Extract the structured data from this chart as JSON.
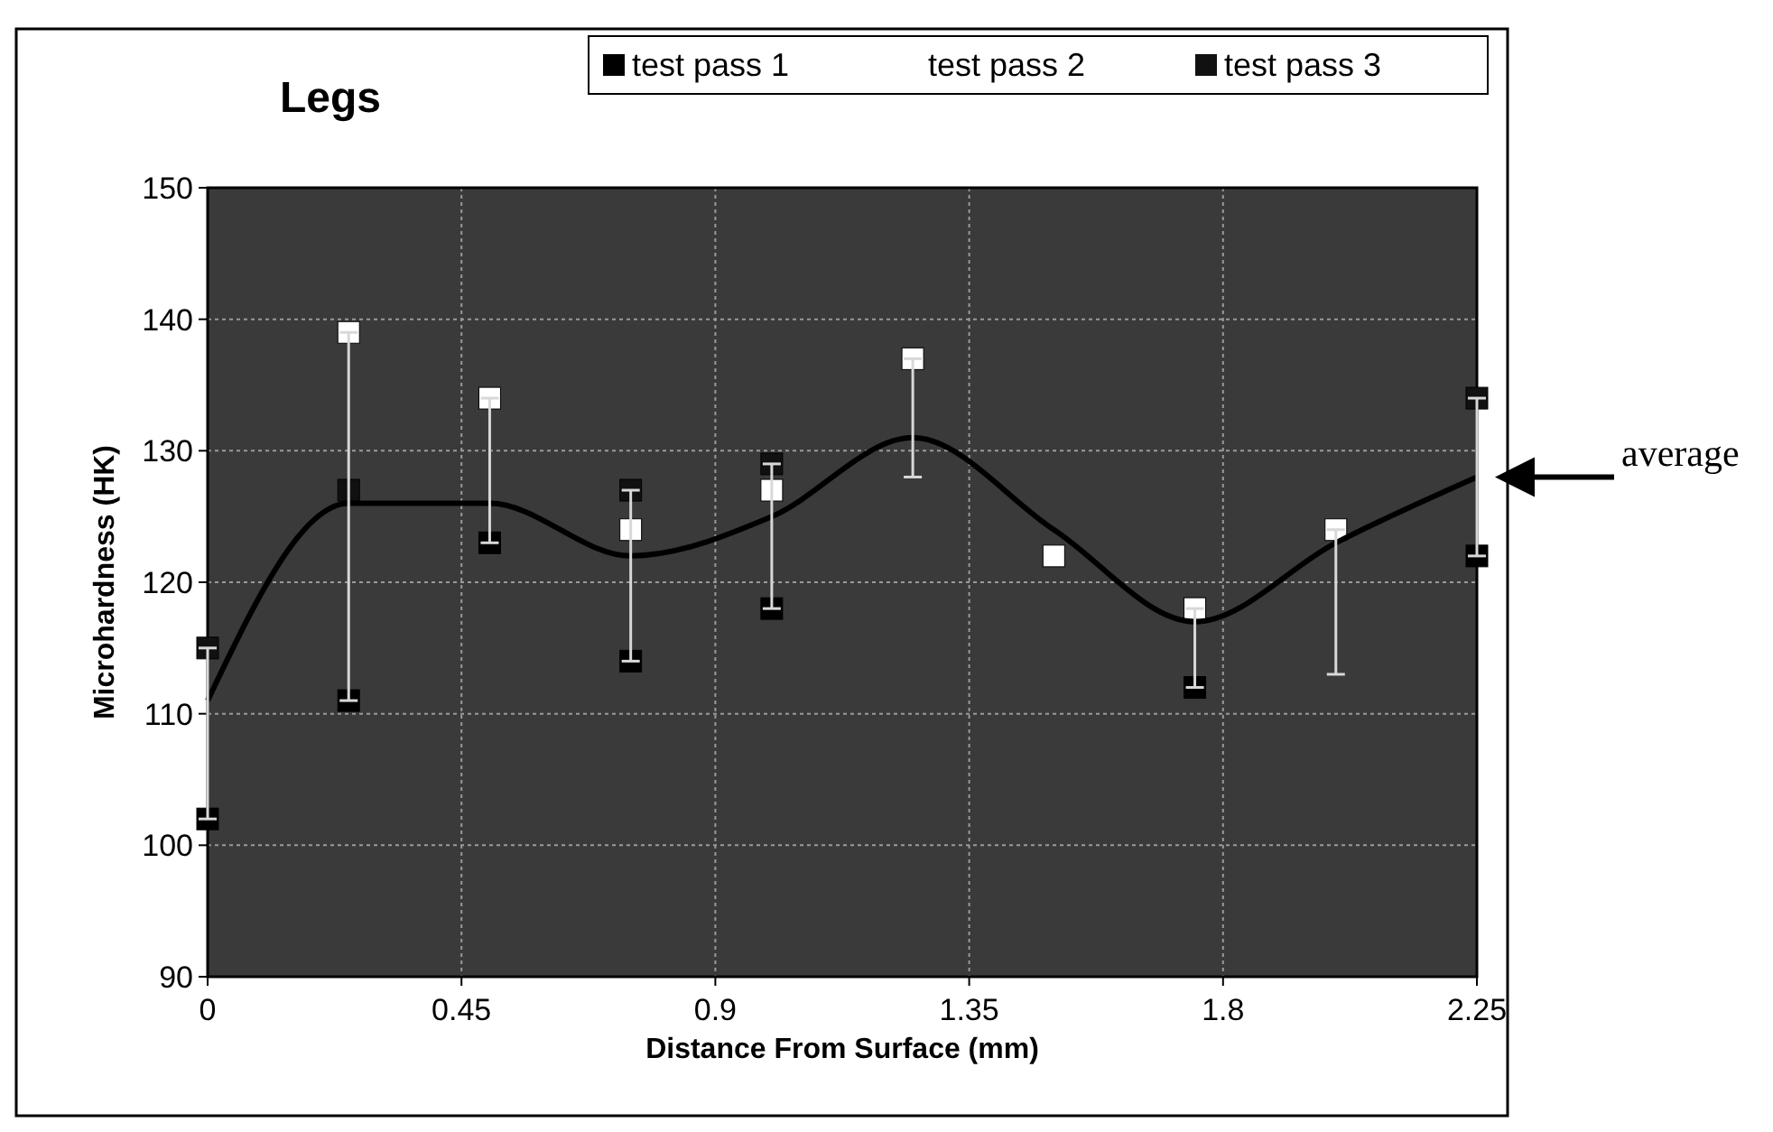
{
  "chart_data": {
    "type": "scatter",
    "title": "Legs",
    "xlabel": "Distance From Surface (mm)",
    "ylabel": "Microhardness (HK)",
    "x": [
      0,
      0.25,
      0.5,
      0.75,
      1,
      1.25,
      1.5,
      1.75,
      2,
      2.25
    ],
    "xlim": [
      0,
      2.25
    ],
    "xticks": [
      0,
      0.45,
      0.9,
      1.35,
      1.8,
      2.25
    ],
    "ylim": [
      90,
      150
    ],
    "yticks": [
      90,
      100,
      110,
      120,
      130,
      140,
      150
    ],
    "grid": true,
    "legend": "top right",
    "marker": "square",
    "series": [
      {
        "name": "test pass 1",
        "color": "#000000",
        "values": [
          102,
          111,
          123,
          114,
          118,
          null,
          null,
          112,
          null,
          122
        ]
      },
      {
        "name": "test pass 2",
        "color": "#ffffff",
        "values": [
          null,
          139,
          134,
          124,
          127,
          137,
          122,
          118,
          124,
          null
        ]
      },
      {
        "name": "test pass 3",
        "color": "#111111",
        "values": [
          115,
          127,
          null,
          127,
          129,
          null,
          null,
          null,
          null,
          134
        ]
      },
      {
        "type": "line",
        "color": "#000000",
        "marker": "none",
        "values": [
          111,
          126,
          126,
          122,
          125,
          131,
          124,
          117,
          123,
          128
        ],
        "errors": [
          [
            102,
            115
          ],
          [
            111,
            139
          ],
          [
            123,
            134
          ],
          [
            114,
            127
          ],
          [
            118,
            129
          ],
          [
            128,
            137
          ],
          null,
          [
            112,
            118
          ],
          [
            113,
            124
          ],
          [
            122,
            134
          ]
        ]
      }
    ],
    "annotations": [
      "average"
    ]
  }
}
